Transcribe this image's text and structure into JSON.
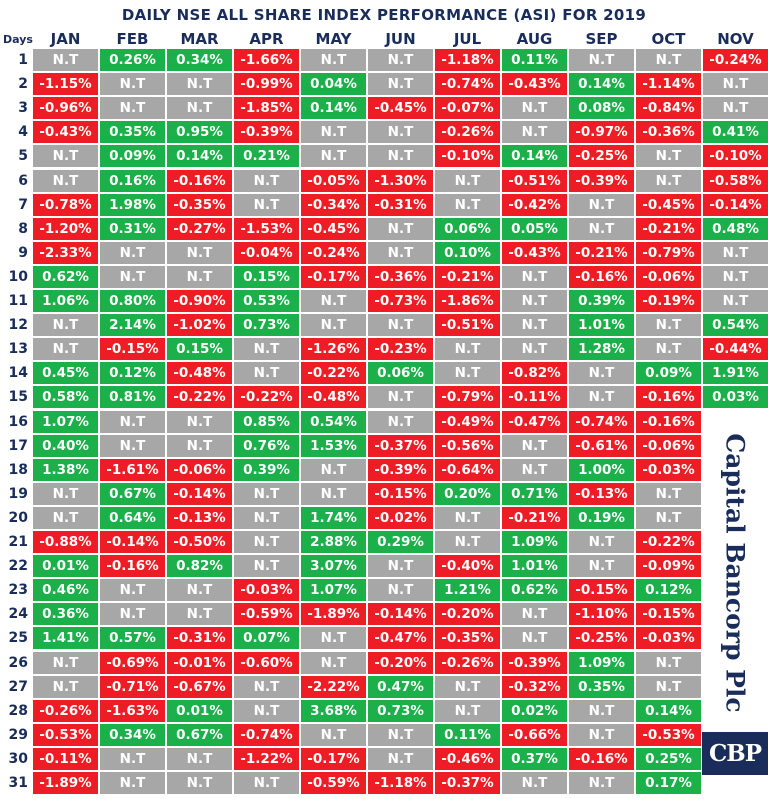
{
  "colors": {
    "positive": "#1bb04a",
    "negative": "#ee1c25",
    "no_trade": "#a7a7a7",
    "header_text": "#1a2d5a"
  },
  "chart_data": {
    "type": "table",
    "title": "DAILY NSE ALL SHARE INDEX PERFORMANCE (ASI) FOR 2019",
    "row_header_label": "Days",
    "columns": [
      "JAN",
      "FEB",
      "MAR",
      "APR",
      "MAY",
      "JUN",
      "JUL",
      "AUG",
      "SEP",
      "OCT",
      "NOV"
    ],
    "rows": [
      {
        "day": "1",
        "values": [
          "N.T",
          "0.26%",
          "0.34%",
          "-1.66%",
          "N.T",
          "N.T",
          "-1.18%",
          "0.11%",
          "N.T",
          "N.T",
          "-0.24%"
        ]
      },
      {
        "day": "2",
        "values": [
          "-1.15%",
          "N.T",
          "N.T",
          "-0.99%",
          "0.04%",
          "N.T",
          "-0.74%",
          "-0.43%",
          "0.14%",
          "-1.14%",
          "N.T"
        ]
      },
      {
        "day": "3",
        "values": [
          "-0.96%",
          "N.T",
          "N.T",
          "-1.85%",
          "0.14%",
          "-0.45%",
          "-0.07%",
          "N.T",
          "0.08%",
          "-0.84%",
          "N.T"
        ]
      },
      {
        "day": "4",
        "values": [
          "-0.43%",
          "0.35%",
          "0.95%",
          "-0.39%",
          "N.T",
          "N.T",
          "-0.26%",
          "N.T",
          "-0.97%",
          "-0.36%",
          "0.41%"
        ]
      },
      {
        "day": "5",
        "values": [
          "N.T",
          "0.09%",
          "0.14%",
          "0.21%",
          "N.T",
          "N.T",
          "-0.10%",
          "0.14%",
          "-0.25%",
          "N.T",
          "-0.10%"
        ]
      },
      {
        "day": "6",
        "values": [
          "N.T",
          "0.16%",
          "-0.16%",
          "N.T",
          "-0.05%",
          "-1.30%",
          "N.T",
          "-0.51%",
          "-0.39%",
          "N.T",
          "-0.58%"
        ]
      },
      {
        "day": "7",
        "values": [
          "-0.78%",
          "1.98%",
          "-0.35%",
          "N.T",
          "-0.34%",
          "-0.31%",
          "N.T",
          "-0.42%",
          "N.T",
          "-0.45%",
          "-0.14%"
        ]
      },
      {
        "day": "8",
        "values": [
          "-1.20%",
          "0.31%",
          "-0.27%",
          "-1.53%",
          "-0.45%",
          "N.T",
          "0.06%",
          "0.05%",
          "N.T",
          "-0.21%",
          "0.48%"
        ]
      },
      {
        "day": "9",
        "values": [
          "-2.33%",
          "N.T",
          "N.T",
          "-0.04%",
          "-0.24%",
          "N.T",
          "0.10%",
          "-0.43%",
          "-0.21%",
          "-0.79%",
          "N.T"
        ]
      },
      {
        "day": "10",
        "values": [
          "0.62%",
          "N.T",
          "N.T",
          "0.15%",
          "-0.17%",
          "-0.36%",
          "-0.21%",
          "N.T",
          "-0.16%",
          "-0.06%",
          "N.T"
        ]
      },
      {
        "day": "11",
        "values": [
          "1.06%",
          "0.80%",
          "-0.90%",
          "0.53%",
          "N.T",
          "-0.73%",
          "-1.86%",
          "N.T",
          "0.39%",
          "-0.19%",
          "N.T"
        ]
      },
      {
        "day": "12",
        "values": [
          "N.T",
          "2.14%",
          "-1.02%",
          "0.73%",
          "N.T",
          "N.T",
          "-0.51%",
          "N.T",
          "1.01%",
          "N.T",
          "0.54%"
        ]
      },
      {
        "day": "13",
        "values": [
          "N.T",
          "-0.15%",
          "0.15%",
          "N.T",
          "-1.26%",
          "-0.23%",
          "N.T",
          "N.T",
          "1.28%",
          "N.T",
          "-0.44%"
        ]
      },
      {
        "day": "14",
        "values": [
          "0.45%",
          "0.12%",
          "-0.48%",
          "N.T",
          "-0.22%",
          "0.06%",
          "N.T",
          "-0.82%",
          "N.T",
          "0.09%",
          "1.91%"
        ]
      },
      {
        "day": "15",
        "values": [
          "0.58%",
          "0.81%",
          "-0.22%",
          "-0.22%",
          "-0.48%",
          "N.T",
          "-0.79%",
          "-0.11%",
          "N.T",
          "-0.16%",
          "0.03%"
        ]
      },
      {
        "day": "16",
        "values": [
          "1.07%",
          "N.T",
          "N.T",
          "0.85%",
          "0.54%",
          "N.T",
          "-0.49%",
          "-0.47%",
          "-0.74%",
          "-0.16%",
          ""
        ]
      },
      {
        "day": "17",
        "values": [
          "0.40%",
          "N.T",
          "N.T",
          "0.76%",
          "1.53%",
          "-0.37%",
          "-0.56%",
          "N.T",
          "-0.61%",
          "-0.06%",
          ""
        ]
      },
      {
        "day": "18",
        "values": [
          "1.38%",
          "-1.61%",
          "-0.06%",
          "0.39%",
          "N.T",
          "-0.39%",
          "-0.64%",
          "N.T",
          "1.00%",
          "-0.03%",
          ""
        ]
      },
      {
        "day": "19",
        "values": [
          "N.T",
          "0.67%",
          "-0.14%",
          "N.T",
          "N.T",
          "-0.15%",
          "0.20%",
          "0.71%",
          "-0.13%",
          "N.T",
          ""
        ]
      },
      {
        "day": "20",
        "values": [
          "N.T",
          "0.64%",
          "-0.13%",
          "N.T",
          "1.74%",
          "-0.02%",
          "N.T",
          "-0.21%",
          "0.19%",
          "N.T",
          ""
        ]
      },
      {
        "day": "21",
        "values": [
          "-0.88%",
          "-0.14%",
          "-0.50%",
          "N.T",
          "2.88%",
          "0.29%",
          "N.T",
          "1.09%",
          "N.T",
          "-0.22%",
          ""
        ]
      },
      {
        "day": "22",
        "values": [
          "0.01%",
          "-0.16%",
          "0.82%",
          "N.T",
          "3.07%",
          "N.T",
          "-0.40%",
          "1.01%",
          "N.T",
          "-0.09%",
          ""
        ]
      },
      {
        "day": "23",
        "values": [
          "0.46%",
          "N.T",
          "N.T",
          "-0.03%",
          "1.07%",
          "N.T",
          "1.21%",
          "0.62%",
          "-0.15%",
          "0.12%",
          ""
        ]
      },
      {
        "day": "24",
        "values": [
          "0.36%",
          "N.T",
          "N.T",
          "-0.59%",
          "-1.89%",
          "-0.14%",
          "-0.20%",
          "N.T",
          "-1.10%",
          "-0.15%",
          ""
        ]
      },
      {
        "day": "25",
        "values": [
          "1.41%",
          "0.57%",
          "-0.31%",
          "0.07%",
          "N.T",
          "-0.47%",
          "-0.35%",
          "N.T",
          "-0.25%",
          "-0.03%",
          ""
        ]
      },
      {
        "day": "26",
        "values": [
          "N.T",
          "-0.69%",
          "-0.01%",
          "-0.60%",
          "N.T",
          "-0.20%",
          "-0.26%",
          "-0.39%",
          "1.09%",
          "N.T",
          ""
        ]
      },
      {
        "day": "27",
        "values": [
          "N.T",
          "-0.71%",
          "-0.67%",
          "N.T",
          "-2.22%",
          "0.47%",
          "N.T",
          "-0.32%",
          "0.35%",
          "N.T",
          ""
        ]
      },
      {
        "day": "28",
        "values": [
          "-0.26%",
          "-1.63%",
          "0.01%",
          "N.T",
          "3.68%",
          "0.73%",
          "N.T",
          "0.02%",
          "N.T",
          "0.14%",
          ""
        ]
      },
      {
        "day": "29",
        "values": [
          "-0.53%",
          "0.34%",
          "0.67%",
          "-0.74%",
          "N.T",
          "N.T",
          "0.11%",
          "-0.66%",
          "N.T",
          "-0.53%",
          ""
        ]
      },
      {
        "day": "30",
        "values": [
          "-0.11%",
          "N.T",
          "N.T",
          "-1.22%",
          "-0.17%",
          "N.T",
          "-0.46%",
          "0.37%",
          "-0.16%",
          "0.25%",
          ""
        ]
      },
      {
        "day": "31",
        "values": [
          "-1.89%",
          "N.T",
          "N.T",
          "N.T",
          "-0.59%",
          "-1.18%",
          "-0.37%",
          "N.T",
          "N.T",
          "0.17%",
          ""
        ]
      }
    ]
  },
  "brand": {
    "name": "Capital Bancorp Plc",
    "logo_text": "CBP"
  }
}
